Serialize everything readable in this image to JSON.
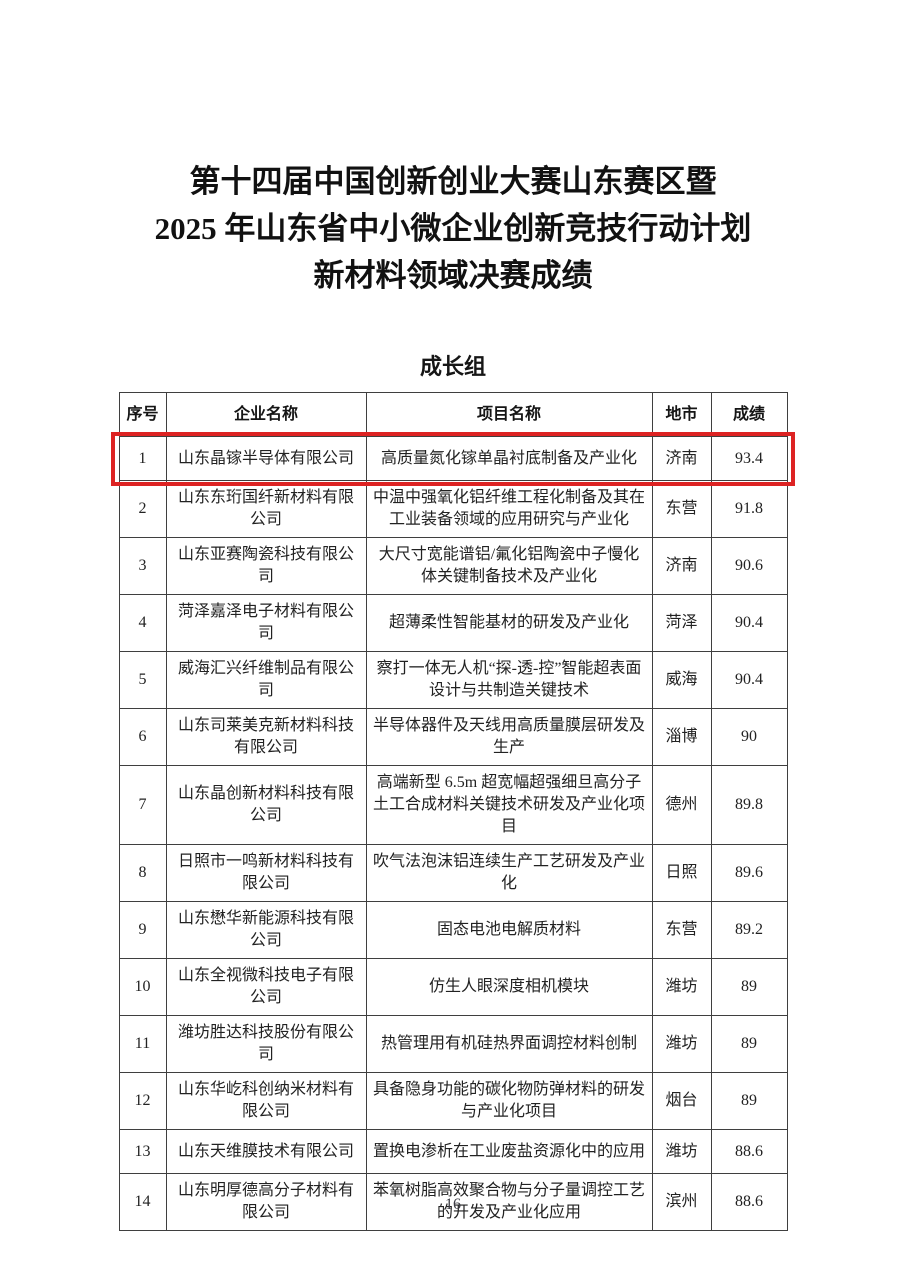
{
  "page": {
    "title_lines": [
      "第十四届中国创新创业大赛山东赛区暨",
      "2025 年山东省中小微企业创新竞技行动计划",
      "新材料领域决赛成绩"
    ],
    "group_heading": "成长组",
    "page_number": "16"
  },
  "colors": {
    "highlight_border": "#dd2323",
    "table_border": "#3f3f3f",
    "text": "#1d1d1d"
  },
  "table": {
    "columns": [
      "序号",
      "企业名称",
      "项目名称",
      "地市",
      "成绩"
    ],
    "rows": [
      {
        "no": "1",
        "company": "山东晶镓半导体有限公司",
        "project": "高质量氮化镓单晶衬底制备及产业化",
        "city": "济南",
        "score": "93.4",
        "highlighted": true
      },
      {
        "no": "2",
        "company": "山东东珩国纤新材料有限公司",
        "project": "中温中强氧化铝纤维工程化制备及其在工业装备领域的应用研究与产业化",
        "city": "东营",
        "score": "91.8",
        "highlighted": false
      },
      {
        "no": "3",
        "company": "山东亚赛陶瓷科技有限公司",
        "project": "大尺寸宽能谱铝/氟化铝陶瓷中子慢化体关键制备技术及产业化",
        "city": "济南",
        "score": "90.6",
        "highlighted": false
      },
      {
        "no": "4",
        "company": "菏泽嘉泽电子材料有限公司",
        "project": "超薄柔性智能基材的研发及产业化",
        "city": "菏泽",
        "score": "90.4",
        "highlighted": false
      },
      {
        "no": "5",
        "company": "威海汇兴纤维制品有限公司",
        "project": "察打一体无人机“探-透-控”智能超表面设计与共制造关键技术",
        "city": "威海",
        "score": "90.4",
        "highlighted": false
      },
      {
        "no": "6",
        "company": "山东司莱美克新材料科技有限公司",
        "project": "半导体器件及天线用高质量膜层研发及生产",
        "city": "淄博",
        "score": "90",
        "highlighted": false
      },
      {
        "no": "7",
        "company": "山东晶创新材料科技有限公司",
        "project": "高端新型 6.5m 超宽幅超强细旦高分子土工合成材料关键技术研发及产业化项目",
        "city": "德州",
        "score": "89.8",
        "highlighted": false
      },
      {
        "no": "8",
        "company": "日照市一鸣新材料科技有限公司",
        "project": "吹气法泡沫铝连续生产工艺研发及产业化",
        "city": "日照",
        "score": "89.6",
        "highlighted": false
      },
      {
        "no": "9",
        "company": "山东懋华新能源科技有限公司",
        "project": "固态电池电解质材料",
        "city": "东营",
        "score": "89.2",
        "highlighted": false
      },
      {
        "no": "10",
        "company": "山东全视微科技电子有限公司",
        "project": "仿生人眼深度相机模块",
        "city": "潍坊",
        "score": "89",
        "highlighted": false
      },
      {
        "no": "11",
        "company": "潍坊胜达科技股份有限公司",
        "project": "热管理用有机硅热界面调控材料创制",
        "city": "潍坊",
        "score": "89",
        "highlighted": false
      },
      {
        "no": "12",
        "company": "山东华屹科创纳米材料有限公司",
        "project": "具备隐身功能的碳化物防弹材料的研发与产业化项目",
        "city": "烟台",
        "score": "89",
        "highlighted": false
      },
      {
        "no": "13",
        "company": "山东天维膜技术有限公司",
        "project": "置换电渗析在工业废盐资源化中的应用",
        "city": "潍坊",
        "score": "88.6",
        "highlighted": false
      },
      {
        "no": "14",
        "company": "山东明厚德高分子材料有限公司",
        "project": "苯氧树脂高效聚合物与分子量调控工艺的开发及产业化应用",
        "city": "滨州",
        "score": "88.6",
        "highlighted": false
      }
    ]
  }
}
